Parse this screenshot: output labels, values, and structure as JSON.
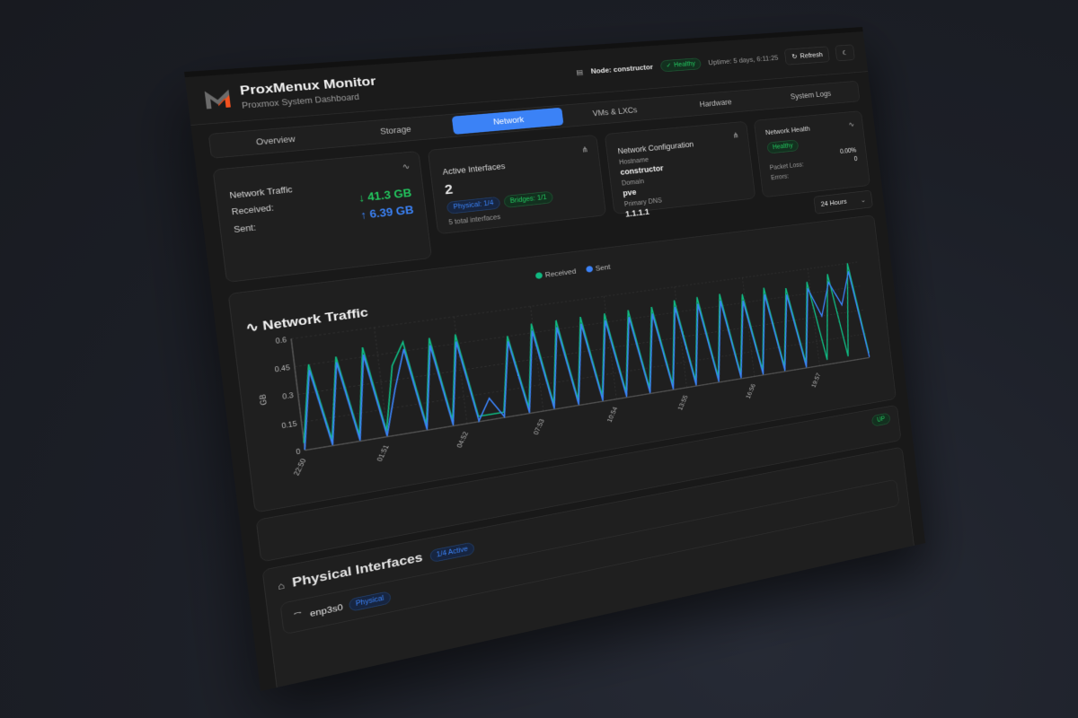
{
  "header": {
    "app_title": "ProxMenux Monitor",
    "app_subtitle": "Proxmox System Dashboard",
    "node": "Node: constructor",
    "status": "Healthy",
    "uptime": "Uptime: 5 days, 6:11:25",
    "refresh_label": "Refresh",
    "logo_colors": {
      "gray": "#6b6b6b",
      "orange": "#f4511e"
    }
  },
  "tabs": [
    {
      "label": "Overview"
    },
    {
      "label": "Storage"
    },
    {
      "label": "Network",
      "active": true
    },
    {
      "label": "VMs & LXCs"
    },
    {
      "label": "Hardware"
    },
    {
      "label": "System Logs"
    }
  ],
  "traffic_card": {
    "title": "Network Traffic",
    "received_label": "Received:",
    "received_value": "↓ 41.3 GB",
    "sent_label": "Sent:",
    "sent_value": "↑ 6.39 GB"
  },
  "interfaces_card": {
    "title": "Active Interfaces",
    "count": "2",
    "physical_badge": "Physical: 1/4",
    "bridges_badge": "Bridges: 1/1",
    "total": "5 total interfaces"
  },
  "config_card": {
    "title": "Network Configuration",
    "hostname_label": "Hostname",
    "hostname": "constructor",
    "domain_label": "Domain",
    "domain": "pve",
    "dns_label": "Primary DNS",
    "dns": "1.1.1.1"
  },
  "health_card": {
    "title": "Network Health",
    "status": "Healthy",
    "packet_loss_label": "Packet Loss:",
    "packet_loss": "0.00%",
    "errors_label": "Errors:",
    "errors": "0"
  },
  "time_range": "24 Hours",
  "colors": {
    "accent": "#3b82f6",
    "received": "#10b981",
    "sent": "#3b82f6",
    "healthy": "#22c55e"
  },
  "chart_data": {
    "type": "line",
    "title": "Network Traffic",
    "ylabel": "GB",
    "ylim": [
      0,
      0.6
    ],
    "yticks": [
      0,
      0.15,
      0.3,
      0.45,
      0.6
    ],
    "xticks": [
      "22:50",
      "01:51",
      "04:52",
      "07:53",
      "10:54",
      "13:55",
      "16:56",
      "19:57"
    ],
    "grid": true,
    "legend": "top-center",
    "x": [
      "22:50",
      "23:20",
      "23:50",
      "00:20",
      "00:50",
      "01:20",
      "01:50",
      "02:20",
      "02:50",
      "03:20",
      "03:50",
      "04:20",
      "04:50",
      "05:20",
      "05:50",
      "06:20",
      "06:50",
      "07:20",
      "07:50",
      "08:20",
      "08:50",
      "09:20",
      "09:50",
      "10:20",
      "10:50",
      "11:20",
      "11:50",
      "12:20",
      "12:50",
      "13:20",
      "13:50",
      "14:20",
      "14:50",
      "15:20",
      "15:50",
      "16:20",
      "16:50",
      "17:20",
      "17:50",
      "18:20",
      "18:50",
      "19:20",
      "19:50",
      "20:20",
      "20:50",
      "21:20",
      "21:50",
      "22:20"
    ],
    "series": [
      {
        "name": "Received",
        "values": [
          0.04,
          0.45,
          0.03,
          0.47,
          0.03,
          0.5,
          0.03,
          0.38,
          0.5,
          0.03,
          0.5,
          0.03,
          0.5,
          0.03,
          0.03,
          0.03,
          0.45,
          0.03,
          0.5,
          0.03,
          0.5,
          0.03,
          0.5,
          0.03,
          0.5,
          0.03,
          0.5,
          0.03,
          0.5,
          0.03,
          0.52,
          0.03,
          0.52,
          0.03,
          0.52,
          0.03,
          0.5,
          0.03,
          0.52,
          0.03,
          0.5,
          0.03,
          0.52,
          0.03,
          0.55,
          0.03,
          0.6,
          0.03
        ]
      },
      {
        "name": "Sent",
        "values": [
          0.005,
          0.42,
          0.005,
          0.44,
          0.005,
          0.46,
          0.005,
          0.25,
          0.46,
          0.005,
          0.46,
          0.005,
          0.46,
          0.005,
          0.12,
          0.005,
          0.42,
          0.005,
          0.46,
          0.005,
          0.46,
          0.005,
          0.46,
          0.005,
          0.46,
          0.005,
          0.46,
          0.005,
          0.46,
          0.005,
          0.48,
          0.005,
          0.48,
          0.005,
          0.48,
          0.005,
          0.46,
          0.005,
          0.48,
          0.005,
          0.46,
          0.005,
          0.48,
          0.3,
          0.5,
          0.35,
          0.55,
          0.005
        ]
      }
    ]
  },
  "status_badge": "UP",
  "physical": {
    "title": "Physical Interfaces",
    "active_badge": "1/4 Active",
    "iface_name": "enp3s0",
    "iface_type": "Physical"
  }
}
